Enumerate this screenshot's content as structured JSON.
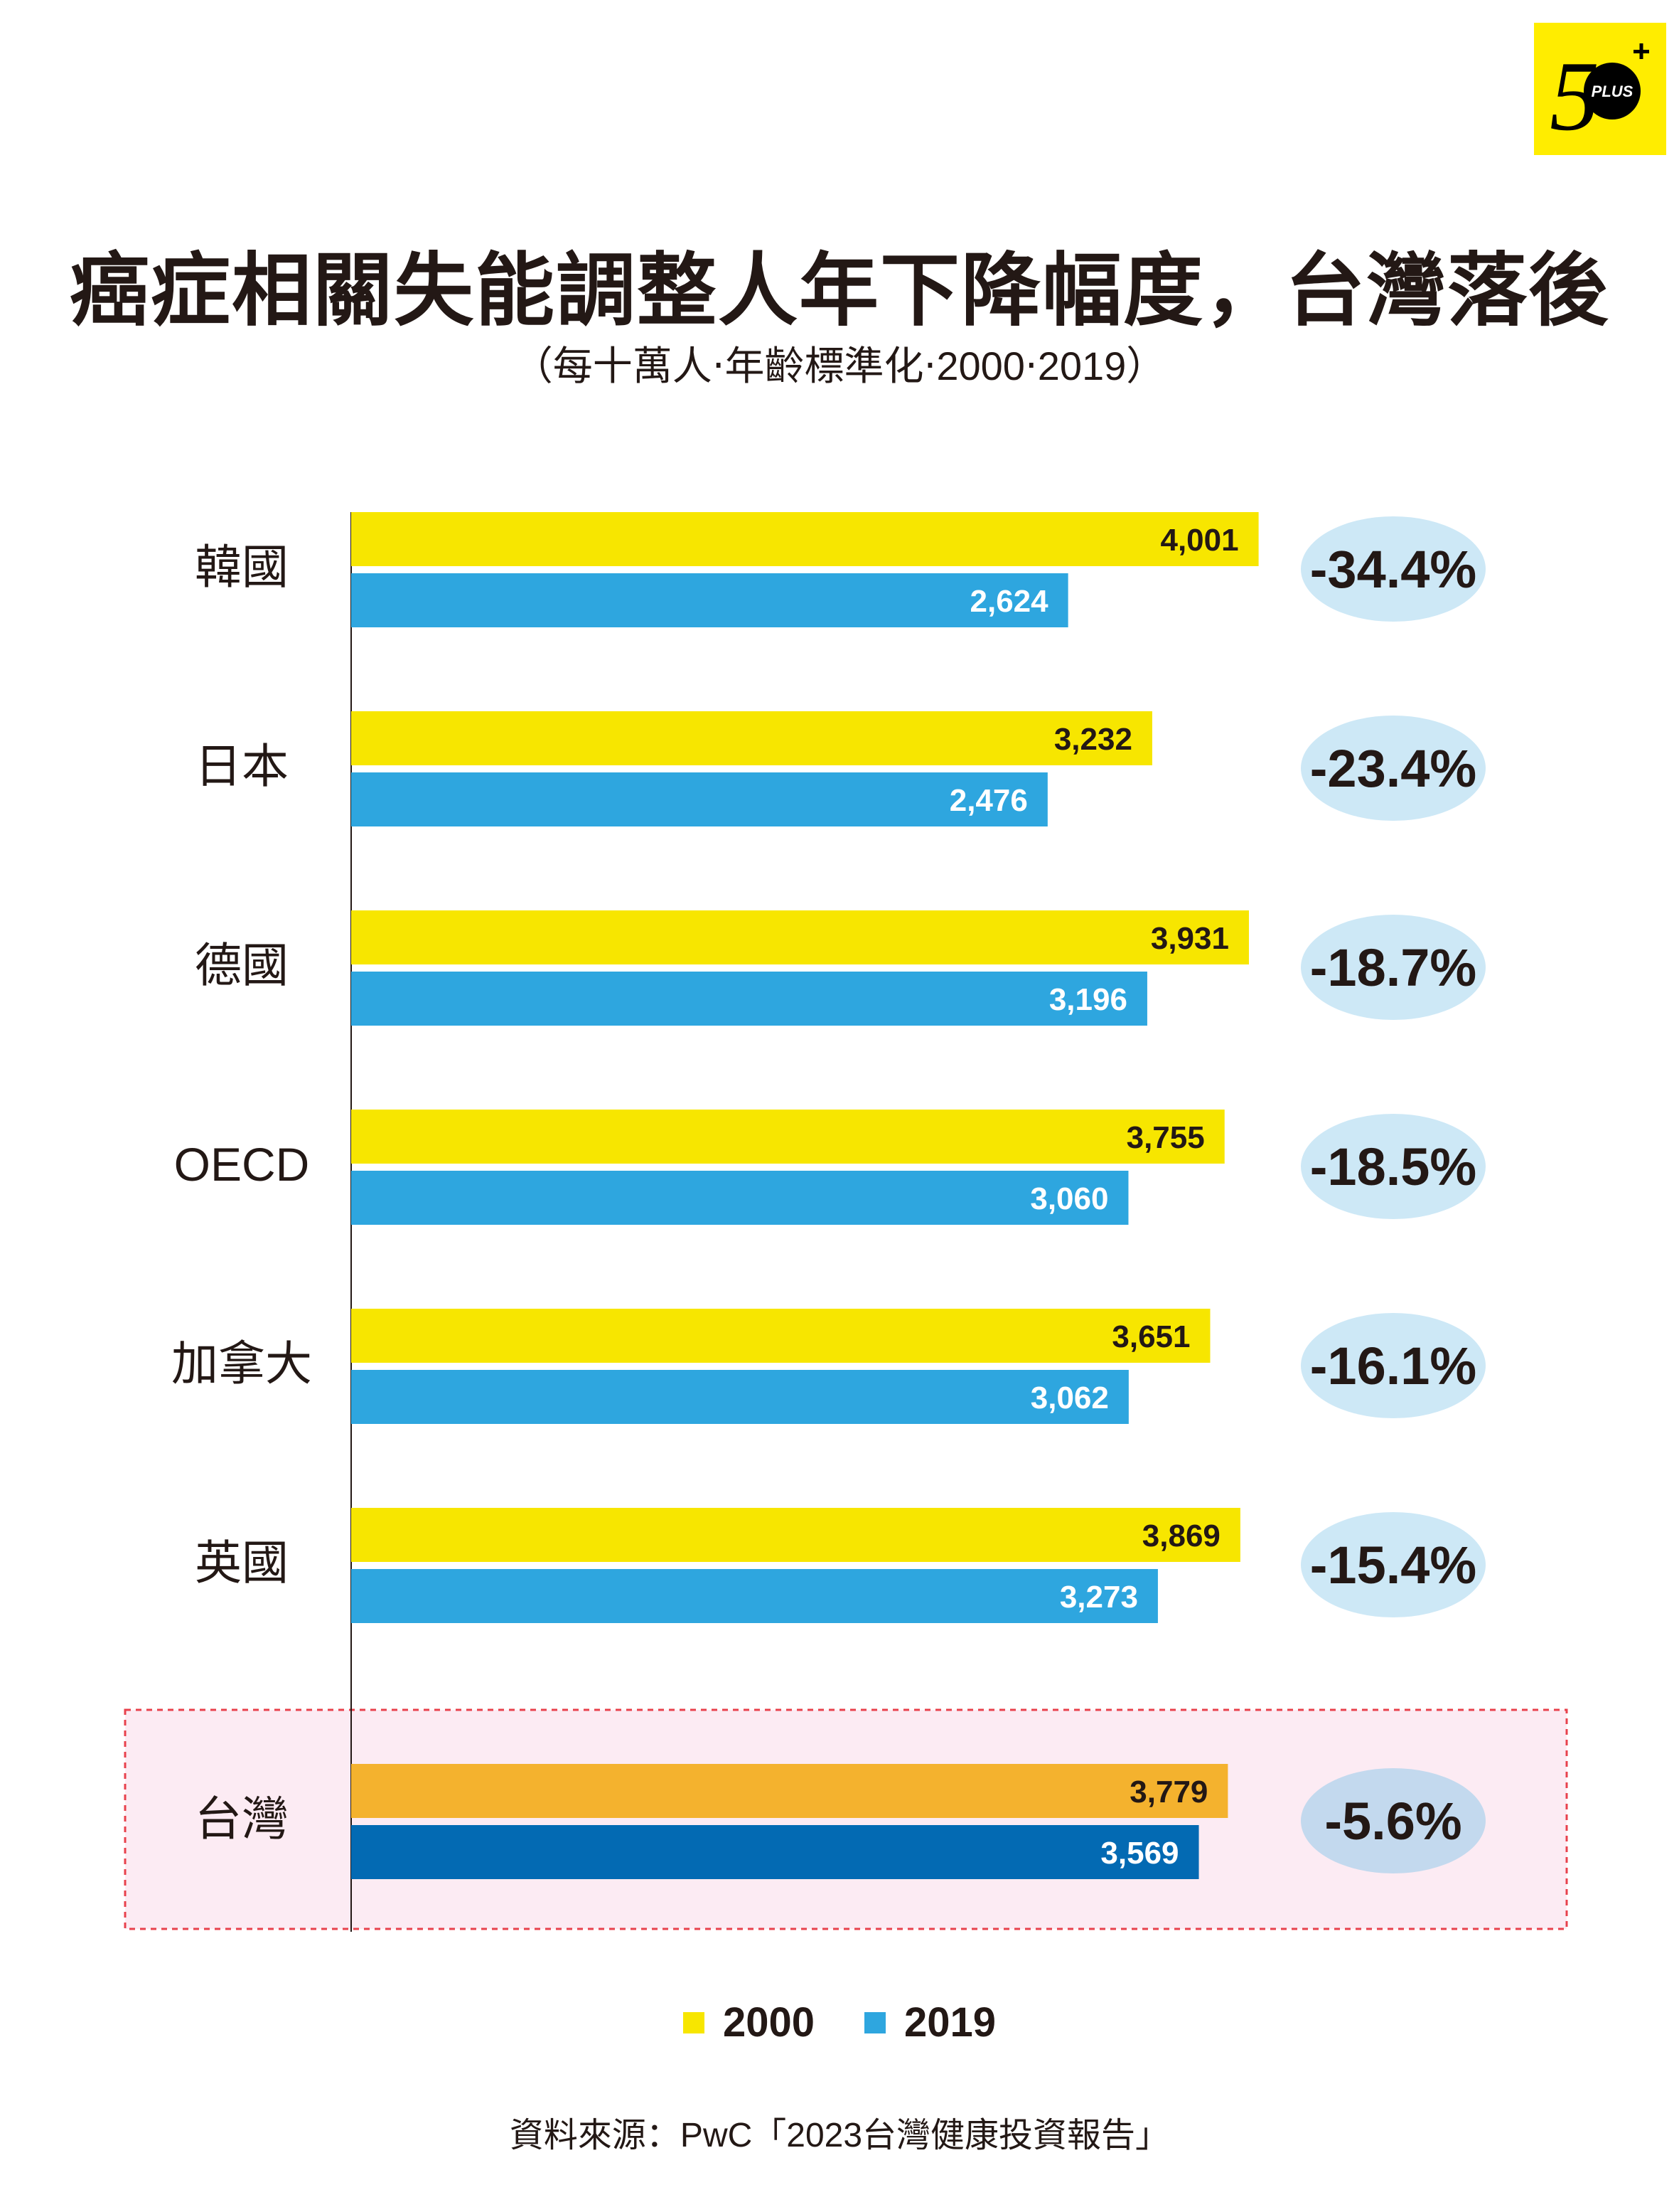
{
  "logo": {
    "text": "50+ PLUS",
    "background": "#ffed00"
  },
  "title": "癌症相關失能調整人年下降幅度，台灣落後",
  "subtitle": "（每十萬人‧年齡標準化‧2000‧2019）",
  "source": "資料來源：PwC「2023台灣健康投資報告」",
  "chart_data": {
    "type": "bar",
    "orientation": "horizontal",
    "categories": [
      "韓國",
      "日本",
      "德國",
      "OECD",
      "加拿大",
      "英國",
      "台灣"
    ],
    "series": [
      {
        "name": "2000",
        "values": [
          4001,
          3232,
          3931,
          3755,
          3651,
          3869,
          3779
        ],
        "labels": [
          "4,001",
          "3,232",
          "3,931",
          "3,755",
          "3,651",
          "3,869",
          "3,779"
        ],
        "color": "#f7e600",
        "highlight_color": "#f4b22e"
      },
      {
        "name": "2019",
        "values": [
          2624,
          2476,
          3196,
          3060,
          3062,
          3273,
          3569
        ],
        "labels": [
          "2,624",
          "2,476",
          "3,196",
          "3,060",
          "3,062",
          "3,273",
          "3,569"
        ],
        "color": "#2ea6df",
        "highlight_color": "#036ab3"
      }
    ],
    "change_labels": [
      "-34.4%",
      "-23.4%",
      "-18.7%",
      "-18.5%",
      "-16.1%",
      "-15.4%",
      "-5.6%"
    ],
    "highlighted_category": "台灣",
    "legend_placement": "bottom",
    "grid": false
  }
}
